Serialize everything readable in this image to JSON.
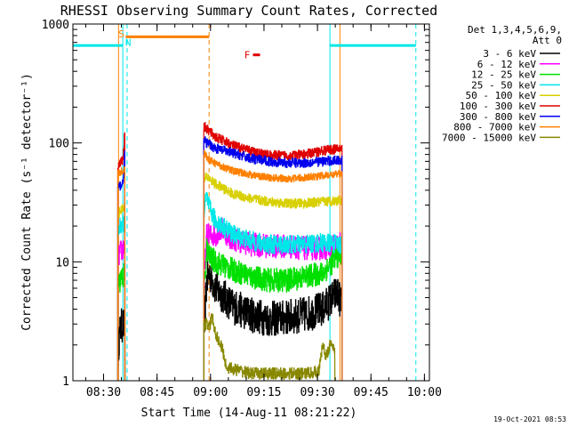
{
  "chart_data": {
    "type": "line",
    "title": "RHESSI Observing Summary Count Rates, Corrected",
    "xlabel": "Start Time (14-Aug-11 08:21:22)",
    "ylabel": "Corrected Count Rate (s⁻¹ detector⁻¹)",
    "x_unit": "minutes after 08:21:22",
    "xlim": [
      0,
      100
    ],
    "ylim": [
      1,
      1000
    ],
    "y_scale": "log",
    "grid": false,
    "x_ticks": [
      {
        "x": 8.6,
        "label": "08:30"
      },
      {
        "x": 23.6,
        "label": "08:45"
      },
      {
        "x": 38.6,
        "label": "09:00"
      },
      {
        "x": 53.6,
        "label": "09:15"
      },
      {
        "x": 68.6,
        "label": "09:30"
      },
      {
        "x": 83.6,
        "label": "09:45"
      },
      {
        "x": 98.6,
        "label": "10:00"
      }
    ],
    "y_ticks": [
      {
        "y": 1,
        "label": "1"
      },
      {
        "y": 10,
        "label": "10"
      },
      {
        "y": 100,
        "label": "100"
      },
      {
        "y": 1000,
        "label": "1000"
      }
    ],
    "legend": {
      "placement": "right",
      "header": [
        "Det 1,3,4,5,6,9,",
        "Att 0"
      ],
      "entries": [
        {
          "label": "3 - 6 keV",
          "color": "#000000"
        },
        {
          "label": "6 - 12 keV",
          "color": "#ff00ff"
        },
        {
          "label": "12 - 25 keV",
          "color": "#00e000"
        },
        {
          "label": "25 - 50 keV",
          "color": "#00e8e8"
        },
        {
          "label": "50 - 100 keV",
          "color": "#d8d000"
        },
        {
          "label": "100 - 300 keV",
          "color": "#e00000"
        },
        {
          "label": "300 - 800 keV",
          "color": "#0000ee"
        },
        {
          "label": "800 - 7000 keV",
          "color": "#ff8000"
        },
        {
          "label": "7000 - 15000 keV",
          "color": "#888800"
        }
      ]
    },
    "series": [
      {
        "name": "3 - 6 keV",
        "color": "#000000",
        "noise": 0.15,
        "points": [
          [
            12.6,
            1.8
          ],
          [
            13.3,
            2.8
          ],
          [
            14.0,
            3.0
          ],
          [
            14.6,
            2.7
          ],
          [
            36.7,
            2.4
          ],
          [
            37.5,
            7
          ],
          [
            38.3,
            8
          ],
          [
            40,
            6
          ],
          [
            45,
            4.2
          ],
          [
            50,
            3.6
          ],
          [
            55,
            3.3
          ],
          [
            60,
            3.4
          ],
          [
            65,
            3.6
          ],
          [
            70,
            4.0
          ],
          [
            74,
            5.5
          ],
          [
            75.5,
            4.5
          ]
        ]
      },
      {
        "name": "6 - 12 keV",
        "color": "#ff00ff",
        "noise": 0.1,
        "points": [
          [
            12.6,
            11
          ],
          [
            13.3,
            12
          ],
          [
            14.0,
            13
          ],
          [
            14.6,
            13.5
          ],
          [
            36.7,
            6
          ],
          [
            37.5,
            17
          ],
          [
            38.3,
            16.5
          ],
          [
            40,
            17
          ],
          [
            42,
            19
          ],
          [
            44,
            16
          ],
          [
            50,
            14
          ],
          [
            55,
            13.5
          ],
          [
            60,
            13.5
          ],
          [
            65,
            13
          ],
          [
            70,
            13
          ],
          [
            75.5,
            14
          ]
        ]
      },
      {
        "name": "12 - 25 keV",
        "color": "#00e000",
        "noise": 0.1,
        "points": [
          [
            12.6,
            6
          ],
          [
            13.3,
            7
          ],
          [
            14.0,
            7.5
          ],
          [
            14.6,
            8
          ],
          [
            36.7,
            5
          ],
          [
            37.5,
            13
          ],
          [
            38.3,
            11
          ],
          [
            40,
            10
          ],
          [
            45,
            8.5
          ],
          [
            50,
            7.5
          ],
          [
            55,
            7
          ],
          [
            60,
            7
          ],
          [
            65,
            7.5
          ],
          [
            70,
            8
          ],
          [
            74,
            11
          ],
          [
            75.5,
            12
          ]
        ]
      },
      {
        "name": "25 - 50 keV",
        "color": "#00e8e8",
        "noise": 0.08,
        "points": [
          [
            12.6,
            18
          ],
          [
            13.3,
            20
          ],
          [
            14.0,
            21
          ],
          [
            14.6,
            22
          ],
          [
            36.7,
            27
          ],
          [
            37.5,
            35
          ],
          [
            38.3,
            28
          ],
          [
            40,
            22
          ],
          [
            45,
            17
          ],
          [
            50,
            15
          ],
          [
            55,
            14
          ],
          [
            60,
            14
          ],
          [
            65,
            14
          ],
          [
            70,
            14.5
          ],
          [
            75.5,
            14
          ]
        ]
      },
      {
        "name": "50 - 100 keV",
        "color": "#d8d000",
        "noise": 0.04,
        "points": [
          [
            12.6,
            25
          ],
          [
            13.3,
            27
          ],
          [
            14.0,
            28
          ],
          [
            14.6,
            30
          ],
          [
            36.7,
            48
          ],
          [
            37.5,
            52
          ],
          [
            38.3,
            50
          ],
          [
            40,
            45
          ],
          [
            45,
            37
          ],
          [
            50,
            34
          ],
          [
            55,
            32
          ],
          [
            60,
            31
          ],
          [
            65,
            31
          ],
          [
            70,
            32
          ],
          [
            75.5,
            33
          ]
        ]
      },
      {
        "name": "100 - 300 keV",
        "color": "#e00000",
        "noise": 0.04,
        "points": [
          [
            12.6,
            65
          ],
          [
            13.3,
            68
          ],
          [
            14.0,
            72
          ],
          [
            14.6,
            130
          ],
          [
            36.7,
            140
          ],
          [
            37.5,
            130
          ],
          [
            38.3,
            125
          ],
          [
            40,
            112
          ],
          [
            45,
            95
          ],
          [
            50,
            85
          ],
          [
            55,
            79
          ],
          [
            60,
            78
          ],
          [
            65,
            80
          ],
          [
            70,
            86
          ],
          [
            75.5,
            90
          ]
        ]
      },
      {
        "name": "300 - 800 keV",
        "color": "#0000ee",
        "noise": 0.04,
        "points": [
          [
            12.6,
            42
          ],
          [
            13.3,
            44
          ],
          [
            14.0,
            46
          ],
          [
            14.6,
            90
          ],
          [
            36.7,
            105
          ],
          [
            37.5,
            100
          ],
          [
            38.3,
            97
          ],
          [
            40,
            90
          ],
          [
            45,
            82
          ],
          [
            50,
            74
          ],
          [
            55,
            70
          ],
          [
            60,
            68
          ],
          [
            65,
            68
          ],
          [
            70,
            70
          ],
          [
            75.5,
            72
          ]
        ]
      },
      {
        "name": "800 - 7000 keV",
        "color": "#ff8000",
        "noise": 0.03,
        "points": [
          [
            12.6,
            55
          ],
          [
            13.3,
            57
          ],
          [
            14.0,
            58
          ],
          [
            14.6,
            62
          ],
          [
            36.7,
            82
          ],
          [
            37.5,
            76
          ],
          [
            38.3,
            72
          ],
          [
            40,
            67
          ],
          [
            45,
            58
          ],
          [
            50,
            54
          ],
          [
            55,
            51
          ],
          [
            60,
            50
          ],
          [
            65,
            51
          ],
          [
            70,
            53
          ],
          [
            75.5,
            55
          ]
        ]
      },
      {
        "name": "7000 - 15000 keV",
        "color": "#888800",
        "noise": 0.05,
        "points": [
          [
            36.7,
            3
          ],
          [
            37.5,
            3
          ],
          [
            38.3,
            2.8
          ],
          [
            39,
            3.5
          ],
          [
            40,
            2.5
          ],
          [
            42,
            1.8
          ],
          [
            43,
            1.3
          ],
          [
            50,
            1.15
          ],
          [
            55,
            1.15
          ],
          [
            60,
            1.15
          ],
          [
            65,
            1.15
          ],
          [
            69,
            1.2
          ],
          [
            70,
            2
          ],
          [
            71,
            1.6
          ],
          [
            72,
            2
          ],
          [
            73.5,
            1.8
          ]
        ]
      }
    ],
    "attenuator_state_bar": {
      "color": "#ff8000",
      "x": [
        14.8,
        38.2
      ],
      "y": 780
    },
    "night_bars": [
      {
        "color": "#00e8e8",
        "x": [
          0,
          14.0
        ],
        "y": 660
      },
      {
        "color": "#00e8e8",
        "x": [
          72.1,
          96.2
        ],
        "y": 660
      }
    ],
    "event_marks": [
      {
        "label": "S",
        "x": 13.6,
        "y": 830,
        "color": "#ff8000"
      },
      {
        "label": "N",
        "x": 15.5,
        "y": 700,
        "color": "#00e8e8"
      },
      {
        "label": "F",
        "x": 48.9,
        "y": 550,
        "color": "#e00000"
      }
    ],
    "flare_bar": {
      "color": "#e00000",
      "x": [
        50.5,
        52.5
      ],
      "y": 550
    },
    "vertical_markers": [
      {
        "x": 14.0,
        "color": "#00e8e8",
        "style": "solid"
      },
      {
        "x": 15.2,
        "color": "#00e8e8",
        "style": "dashed"
      },
      {
        "x": 12.8,
        "color": "#ff8000",
        "style": "solid"
      },
      {
        "x": 38.2,
        "color": "#ff8000",
        "style": "dashed"
      },
      {
        "x": 72.1,
        "color": "#00e8e8",
        "style": "solid"
      },
      {
        "x": 74.9,
        "color": "#ff8000",
        "style": "solid"
      },
      {
        "x": 96.2,
        "color": "#00e8e8",
        "style": "dashed"
      }
    ],
    "footer_timestamp": "19-Oct-2021 08:53"
  }
}
